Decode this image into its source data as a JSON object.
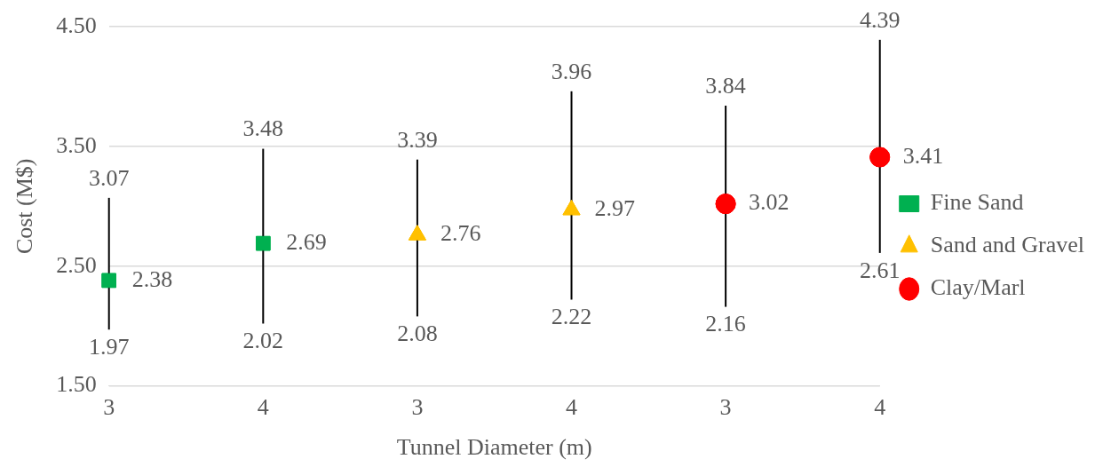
{
  "chart_data": {
    "type": "scatter",
    "xlabel": "Tunnel Diameter (m)",
    "ylabel": "Cost (M$)",
    "categories": [
      "3",
      "4",
      "3",
      "4",
      "3",
      "4"
    ],
    "series": [
      {
        "name": "Fine Sand",
        "color": "#00b050",
        "marker": "square",
        "values": [
          2.38,
          2.69,
          null,
          null,
          null,
          null
        ],
        "errors": [
          [
            1.97,
            3.07
          ],
          [
            2.02,
            3.48
          ],
          null,
          null,
          null,
          null
        ]
      },
      {
        "name": "Sand and Gravel",
        "color": "#ffc000",
        "marker": "triangle",
        "values": [
          null,
          null,
          2.76,
          2.97,
          null,
          null
        ],
        "errors": [
          null,
          null,
          [
            2.08,
            3.39
          ],
          [
            2.22,
            3.96
          ],
          null,
          null
        ]
      },
      {
        "name": "Clay/Marl",
        "color": "#ff0000",
        "marker": "circle",
        "values": [
          null,
          null,
          null,
          null,
          3.02,
          3.41
        ],
        "errors": [
          null,
          null,
          null,
          null,
          [
            2.16,
            3.84
          ],
          [
            2.61,
            4.39
          ]
        ]
      }
    ],
    "ylim": [
      1.5,
      4.5
    ],
    "yticks": [
      {
        "value": 1.5,
        "label": "1.50"
      },
      {
        "value": 2.5,
        "label": "2.50"
      },
      {
        "value": 3.5,
        "label": "3.50"
      },
      {
        "value": 4.5,
        "label": "4.50"
      }
    ],
    "grid": "y",
    "legend": "right",
    "data_labels": true,
    "annotations": [
      "3.07",
      "1.97",
      "3.48",
      "2.02",
      "3.39",
      "2.08",
      "3.96",
      "2.22",
      "3.84",
      "2.16",
      "4.39",
      "2.61"
    ]
  }
}
